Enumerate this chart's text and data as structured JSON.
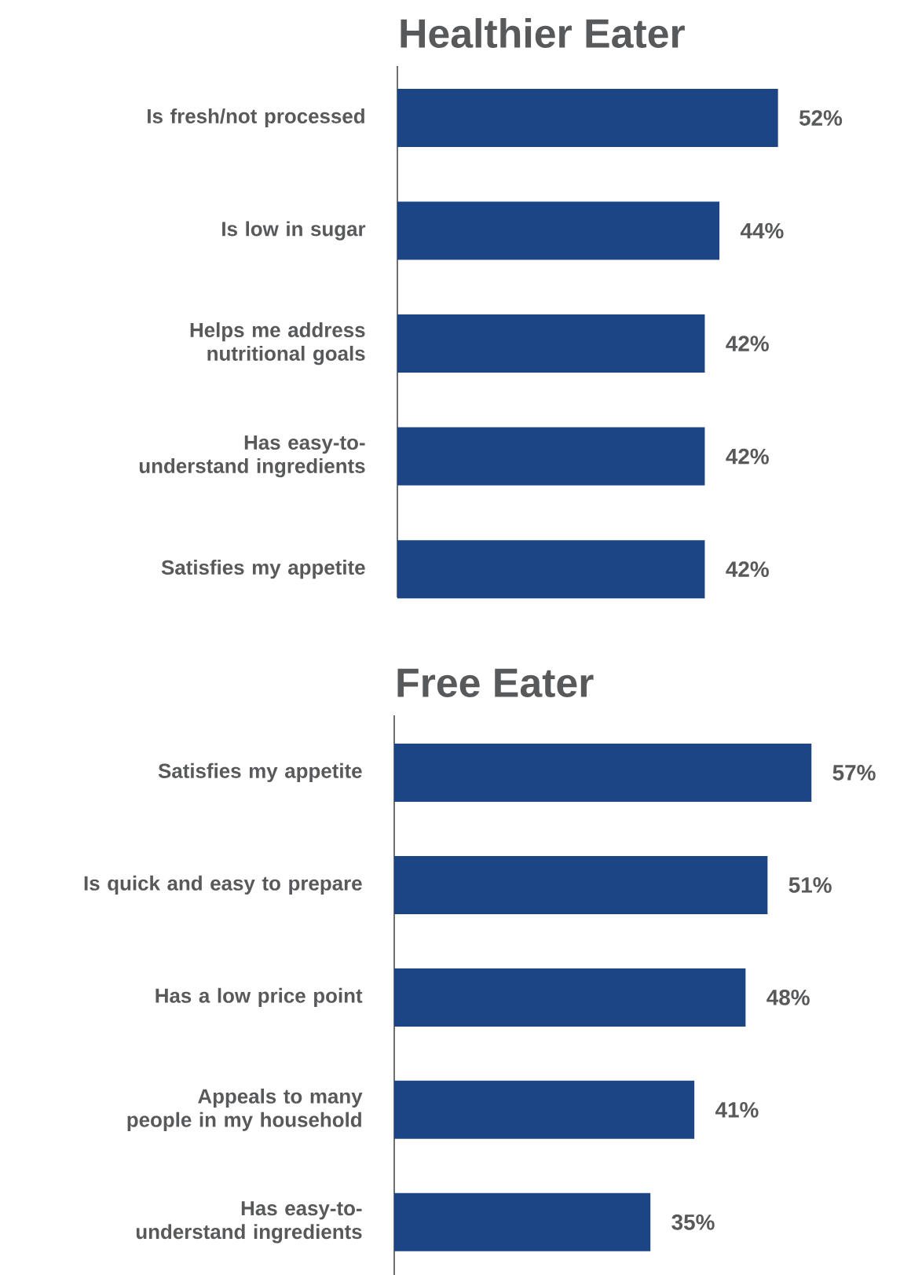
{
  "chart_data": [
    {
      "type": "bar",
      "orientation": "horizontal",
      "title": "Healthier Eater",
      "categories": [
        "Is fresh/not processed",
        "Is low in sugar",
        "Helps me address nutritional goals",
        "Has easy-to-understand ingredients",
        "Satisfies my appetite"
      ],
      "values": [
        52,
        44,
        42,
        42,
        42
      ],
      "value_labels": [
        "52%",
        "44%",
        "42%",
        "42%",
        "42%"
      ],
      "color": "#1b4585",
      "tick_labels": "y"
    },
    {
      "type": "bar",
      "orientation": "horizontal",
      "title": "Free Eater",
      "categories": [
        "Satisfies my appetite",
        "Is quick and easy to prepare",
        "Has a low price point",
        "Appeals to many people in my household",
        "Has easy-to-understand ingredients"
      ],
      "values": [
        57,
        51,
        48,
        41,
        35
      ],
      "value_labels": [
        "57%",
        "51%",
        "48%",
        "41%",
        "35%"
      ],
      "color": "#1b4585",
      "tick_labels": "y"
    }
  ]
}
